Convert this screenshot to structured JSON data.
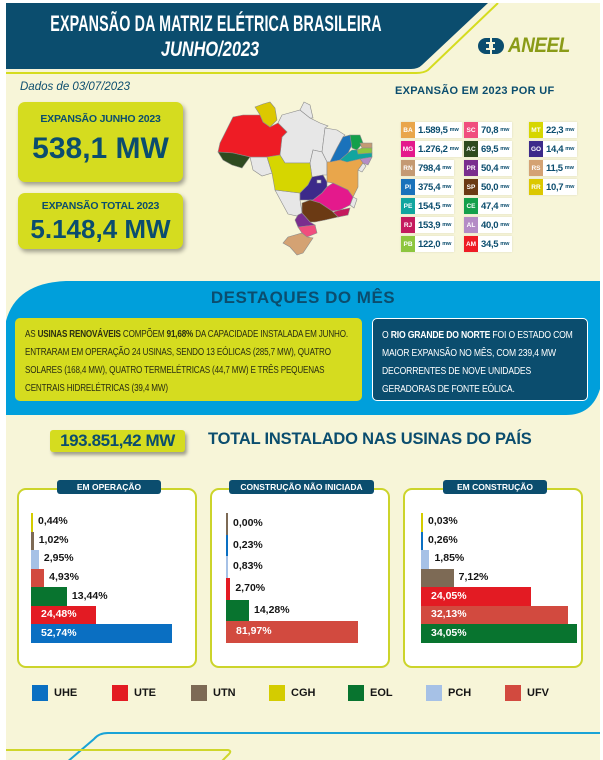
{
  "header": {
    "title": "EXPANSÃO DA MATRIZ ELÉTRICA BRASILEIRA",
    "subtitle": "JUNHO/2023",
    "logo_text": "ANEEL"
  },
  "date_label": "Dados de 03/07/2023",
  "kpis": {
    "june": {
      "label": "EXPANSÃO JUNHO 2023",
      "value": "538,1 MW"
    },
    "total": {
      "label": "EXPANSÃO TOTAL 2023",
      "value": "5.148,4 MW"
    }
  },
  "uf_expansion": {
    "title": "EXPANSÃO EM 2023 POR UF",
    "unit": "mw",
    "items": [
      {
        "uf": "BA",
        "value": "1.589,5",
        "color": "#e9a64b"
      },
      {
        "uf": "MG",
        "value": "1.276,2",
        "color": "#e4198c"
      },
      {
        "uf": "RN",
        "value": "798,4",
        "color": "#c49a73"
      },
      {
        "uf": "PI",
        "value": "375,4",
        "color": "#1a72bb"
      },
      {
        "uf": "PE",
        "value": "154,5",
        "color": "#11a59f"
      },
      {
        "uf": "RJ",
        "value": "153,9",
        "color": "#c41a5e"
      },
      {
        "uf": "PB",
        "value": "122,0",
        "color": "#8dc63f"
      },
      {
        "uf": "SC",
        "value": "70,8",
        "color": "#f04e7e"
      },
      {
        "uf": "AC",
        "value": "69,5",
        "color": "#2e4a1f"
      },
      {
        "uf": "PR",
        "value": "50,4",
        "color": "#7a2e8e"
      },
      {
        "uf": "SP",
        "value": "50,0",
        "color": "#6b3a14"
      },
      {
        "uf": "CE",
        "value": "47,4",
        "color": "#14a04b"
      },
      {
        "uf": "AL",
        "value": "40,0",
        "color": "#b48cc6"
      },
      {
        "uf": "AM",
        "value": "34,5",
        "color": "#ee1c25"
      },
      {
        "uf": "MT",
        "value": "22,3",
        "color": "#d6d600"
      },
      {
        "uf": "GO",
        "value": "14,4",
        "color": "#3c2a8a"
      },
      {
        "uf": "RS",
        "value": "11,5",
        "color": "#d4a273"
      },
      {
        "uf": "RR",
        "value": "10,7",
        "color": "#dcc800"
      }
    ]
  },
  "highlights": {
    "title": "DESTAQUES DO MÊS",
    "renewables": {
      "p1": "AS ",
      "b1": "USINAS RENOVÁVEIS",
      "p2": " COMPÕEM ",
      "b2": "91,68%",
      "p3": " DA CAPACIDADE INSTALADA EM JUNHO. ENTRARAM EM OPERAÇÃO 24 USINAS, SENDO 13 EÓLICAS (285,7 MW), QUATRO SOLARES (168,4 MW), QUATRO TERMELÉTRICAS (44,7 MW) E TRÊS PEQUENAS CENTRAIS HIDRELÉTRICAS (39,4 MW)"
    },
    "state": {
      "p1": "O ",
      "b1": "RIO GRANDE DO NORTE",
      "p2": " FOI O ESTADO COM MAIOR EXPANSÃO NO MÊS, COM 239,4 MW DECORRENTES DE NOVE UNIDADES GERADORAS DE FONTE EÓLICA."
    }
  },
  "installed_total": {
    "value": "193.851,42 MW",
    "label": "TOTAL INSTALADO NAS USINAS DO PAÍS"
  },
  "legend": [
    {
      "key": "UHE",
      "label": "UHE",
      "color": "#0a6fc2"
    },
    {
      "key": "UTE",
      "label": "UTE",
      "color": "#e31b23"
    },
    {
      "key": "UTN",
      "label": "UTN",
      "color": "#7d6a55"
    },
    {
      "key": "CGH",
      "label": "CGH",
      "color": "#d4cc00"
    },
    {
      "key": "EOL",
      "label": "EOL",
      "color": "#08742f"
    },
    {
      "key": "PCH",
      "label": "PCH",
      "color": "#a6c1e6"
    },
    {
      "key": "UFV",
      "label": "UFV",
      "color": "#d24a3f"
    }
  ],
  "chart_data": [
    {
      "type": "bar",
      "orientation": "horizontal",
      "title": "EM OPERAÇÃO",
      "unit": "%",
      "categories": [
        "CGH",
        "UTN",
        "PCH",
        "UFV",
        "EOL",
        "UTE",
        "UHE"
      ],
      "values": [
        0.44,
        1.02,
        2.95,
        4.93,
        13.44,
        24.48,
        52.74
      ],
      "labels": [
        "0,44%",
        "1,02%",
        "2,95%",
        "4,93%",
        "13,44%",
        "24,48%",
        "52,74%"
      ]
    },
    {
      "type": "bar",
      "orientation": "horizontal",
      "title": "CONSTRUÇÃO NÃO INICIADA",
      "unit": "%",
      "categories": [
        "UTN",
        "UHE",
        "PCH",
        "UTE",
        "EOL",
        "UFV"
      ],
      "values": [
        0.0,
        0.23,
        0.83,
        2.7,
        14.28,
        81.97
      ],
      "labels": [
        "0,00%",
        "0,23%",
        "0,83%",
        "2,70%",
        "14,28%",
        "81,97%"
      ]
    },
    {
      "type": "bar",
      "orientation": "horizontal",
      "title": "EM CONSTRUÇÃO",
      "unit": "%",
      "categories": [
        "CGH",
        "UHE",
        "PCH",
        "UTN",
        "UTE",
        "UFV",
        "EOL"
      ],
      "values": [
        0.03,
        0.26,
        1.85,
        7.12,
        24.05,
        32.13,
        34.05
      ],
      "labels": [
        "0,03%",
        "0,26%",
        "1,85%",
        "7,12%",
        "24,05%",
        "32,13%",
        "34,05%"
      ]
    }
  ]
}
